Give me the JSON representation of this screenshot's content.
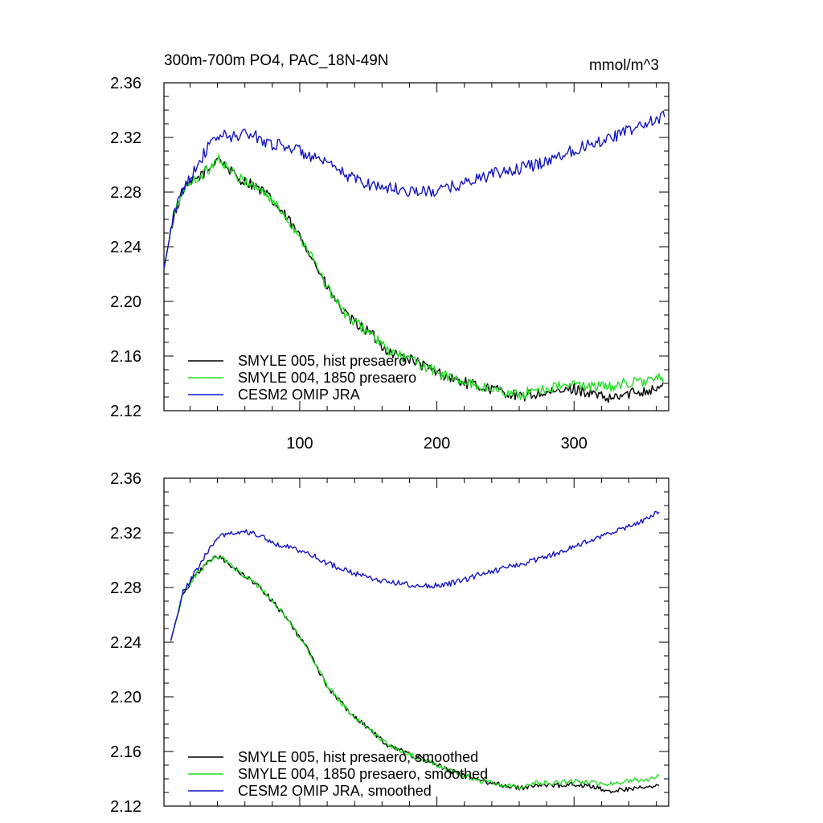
{
  "figure": {
    "title_left": "300m-700m PO4, PAC_18N-49N",
    "title_right": "mmol/m^3"
  },
  "chart_data": [
    {
      "type": "line",
      "title": "300m-700m PO4, PAC_18N-49N",
      "units": "mmol/m^3",
      "xlim": [
        1,
        369
      ],
      "ylim": [
        2.12,
        2.36
      ],
      "xticks": [
        100,
        200,
        300
      ],
      "xtick_labels": [
        "100",
        "200",
        "300"
      ],
      "yticks": [
        2.12,
        2.16,
        2.2,
        2.24,
        2.28,
        2.32,
        2.36
      ],
      "ytick_labels": [
        "2.12",
        "2.16",
        "2.20",
        "2.24",
        "2.28",
        "2.32",
        "2.36"
      ],
      "legend": {
        "placement": "bottom-left",
        "entries": [
          "SMYLE 005, hist presaero",
          "SMYLE 004, 1850 presaero",
          "CESM2 OMIP JRA"
        ]
      },
      "series": [
        {
          "name": "SMYLE 005, hist presaero",
          "color": "#000000",
          "x": [
            1,
            8,
            15,
            25,
            35,
            40,
            45,
            55,
            65,
            75,
            90,
            105,
            120,
            135,
            150,
            165,
            180,
            200,
            215,
            230,
            245,
            260,
            270,
            285,
            300,
            315,
            325,
            335,
            345,
            355,
            365
          ],
          "y": [
            2.224,
            2.262,
            2.282,
            2.29,
            2.298,
            2.306,
            2.3,
            2.29,
            2.286,
            2.279,
            2.262,
            2.24,
            2.21,
            2.188,
            2.178,
            2.163,
            2.158,
            2.148,
            2.142,
            2.138,
            2.135,
            2.13,
            2.132,
            2.133,
            2.136,
            2.132,
            2.128,
            2.131,
            2.134,
            2.135,
            2.138
          ],
          "noise": 0.004
        },
        {
          "name": "SMYLE 004, 1850 presaero",
          "color": "#22dd22",
          "x": [
            1,
            8,
            15,
            25,
            35,
            40,
            45,
            55,
            65,
            75,
            90,
            105,
            120,
            135,
            150,
            165,
            180,
            200,
            215,
            230,
            245,
            260,
            270,
            285,
            300,
            315,
            325,
            335,
            345,
            355,
            365
          ],
          "y": [
            2.224,
            2.262,
            2.282,
            2.29,
            2.298,
            2.306,
            2.3,
            2.29,
            2.286,
            2.279,
            2.262,
            2.24,
            2.21,
            2.188,
            2.178,
            2.163,
            2.158,
            2.148,
            2.142,
            2.138,
            2.135,
            2.131,
            2.135,
            2.137,
            2.139,
            2.138,
            2.137,
            2.14,
            2.141,
            2.142,
            2.144
          ],
          "noise": 0.004
        },
        {
          "name": "CESM2 OMIP JRA",
          "color": "#1414c8",
          "x": [
            1,
            8,
            15,
            25,
            35,
            42,
            50,
            60,
            70,
            80,
            90,
            100,
            110,
            120,
            135,
            150,
            165,
            180,
            195,
            205,
            215,
            230,
            245,
            260,
            275,
            290,
            305,
            320,
            335,
            350,
            360,
            366
          ],
          "y": [
            2.224,
            2.262,
            2.283,
            2.3,
            2.315,
            2.322,
            2.32,
            2.323,
            2.32,
            2.315,
            2.314,
            2.31,
            2.305,
            2.3,
            2.292,
            2.286,
            2.283,
            2.281,
            2.28,
            2.282,
            2.285,
            2.29,
            2.294,
            2.297,
            2.301,
            2.307,
            2.313,
            2.318,
            2.323,
            2.329,
            2.333,
            2.336
          ],
          "noise": 0.0045
        }
      ]
    },
    {
      "type": "line",
      "title": "",
      "xlim": [
        1,
        369
      ],
      "ylim": [
        2.12,
        2.36
      ],
      "xticks": [
        100,
        200,
        300
      ],
      "xtick_labels": [],
      "yticks": [
        2.12,
        2.16,
        2.2,
        2.24,
        2.28,
        2.32,
        2.36
      ],
      "ytick_labels": [
        "2.12",
        "2.16",
        "2.20",
        "2.24",
        "2.28",
        "2.32",
        "2.36"
      ],
      "legend": {
        "placement": "bottom-left",
        "entries": [
          "SMYLE 005, hist presaero, smoothed",
          "SMYLE 004, 1850 presaero, smoothed",
          "CESM2 OMIP JRA, smoothed"
        ]
      },
      "series": [
        {
          "name": "SMYLE 005, hist presaero, smoothed",
          "color": "#000000",
          "x": [
            6,
            15,
            25,
            35,
            40,
            45,
            55,
            65,
            75,
            90,
            105,
            120,
            135,
            150,
            165,
            180,
            200,
            215,
            230,
            245,
            260,
            270,
            285,
            300,
            315,
            325,
            335,
            345,
            355,
            362
          ],
          "y": [
            2.241,
            2.276,
            2.29,
            2.3,
            2.303,
            2.3,
            2.292,
            2.285,
            2.276,
            2.258,
            2.236,
            2.208,
            2.19,
            2.177,
            2.164,
            2.158,
            2.15,
            2.144,
            2.139,
            2.136,
            2.133,
            2.135,
            2.135,
            2.136,
            2.134,
            2.131,
            2.132,
            2.133,
            2.134,
            2.136
          ],
          "noise": 0.0018
        },
        {
          "name": "SMYLE 004, 1850 presaero, smoothed",
          "color": "#22dd22",
          "x": [
            6,
            15,
            25,
            35,
            40,
            45,
            55,
            65,
            75,
            90,
            105,
            120,
            135,
            150,
            165,
            180,
            200,
            215,
            230,
            245,
            260,
            270,
            285,
            300,
            315,
            325,
            335,
            345,
            355,
            362
          ],
          "y": [
            2.241,
            2.276,
            2.29,
            2.3,
            2.303,
            2.3,
            2.292,
            2.285,
            2.276,
            2.258,
            2.236,
            2.208,
            2.19,
            2.177,
            2.164,
            2.158,
            2.15,
            2.144,
            2.139,
            2.136,
            2.134,
            2.137,
            2.137,
            2.138,
            2.137,
            2.136,
            2.138,
            2.139,
            2.14,
            2.142
          ],
          "noise": 0.0018
        },
        {
          "name": "CESM2 OMIP JRA, smoothed",
          "color": "#1414c8",
          "x": [
            6,
            15,
            25,
            35,
            42,
            50,
            60,
            70,
            80,
            90,
            100,
            110,
            120,
            135,
            150,
            165,
            180,
            195,
            205,
            215,
            230,
            245,
            260,
            275,
            290,
            305,
            320,
            335,
            350,
            362
          ],
          "y": [
            2.241,
            2.277,
            2.293,
            2.31,
            2.318,
            2.32,
            2.321,
            2.318,
            2.313,
            2.31,
            2.307,
            2.303,
            2.298,
            2.292,
            2.287,
            2.284,
            2.282,
            2.281,
            2.282,
            2.284,
            2.289,
            2.293,
            2.297,
            2.301,
            2.306,
            2.312,
            2.317,
            2.323,
            2.329,
            2.336
          ],
          "noise": 0.002
        }
      ]
    }
  ]
}
